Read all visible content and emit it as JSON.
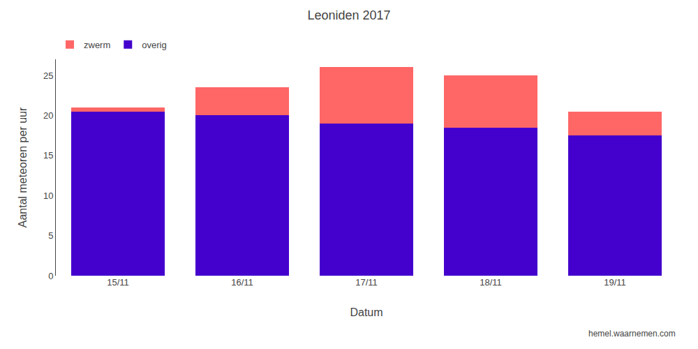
{
  "chart_data": {
    "type": "bar",
    "stacked": true,
    "title": "Leoniden 2017",
    "xlabel": "Datum",
    "ylabel": "Aantal meteoren per uur",
    "categories": [
      "15/11",
      "16/11",
      "17/11",
      "18/11",
      "19/11"
    ],
    "series": [
      {
        "name": "overig",
        "color": "#4400CC",
        "values": [
          20.5,
          20.0,
          19.0,
          18.5,
          17.5
        ]
      },
      {
        "name": "zwerm",
        "color": "#FF6666",
        "values": [
          0.5,
          3.5,
          7.0,
          6.5,
          3.0
        ]
      }
    ],
    "ylim": [
      0,
      27
    ],
    "yticks": [
      0,
      5,
      10,
      15,
      20,
      25
    ],
    "grid": false,
    "legend": "upper left",
    "annotations": [
      "hemel.waarnemen.com"
    ]
  }
}
